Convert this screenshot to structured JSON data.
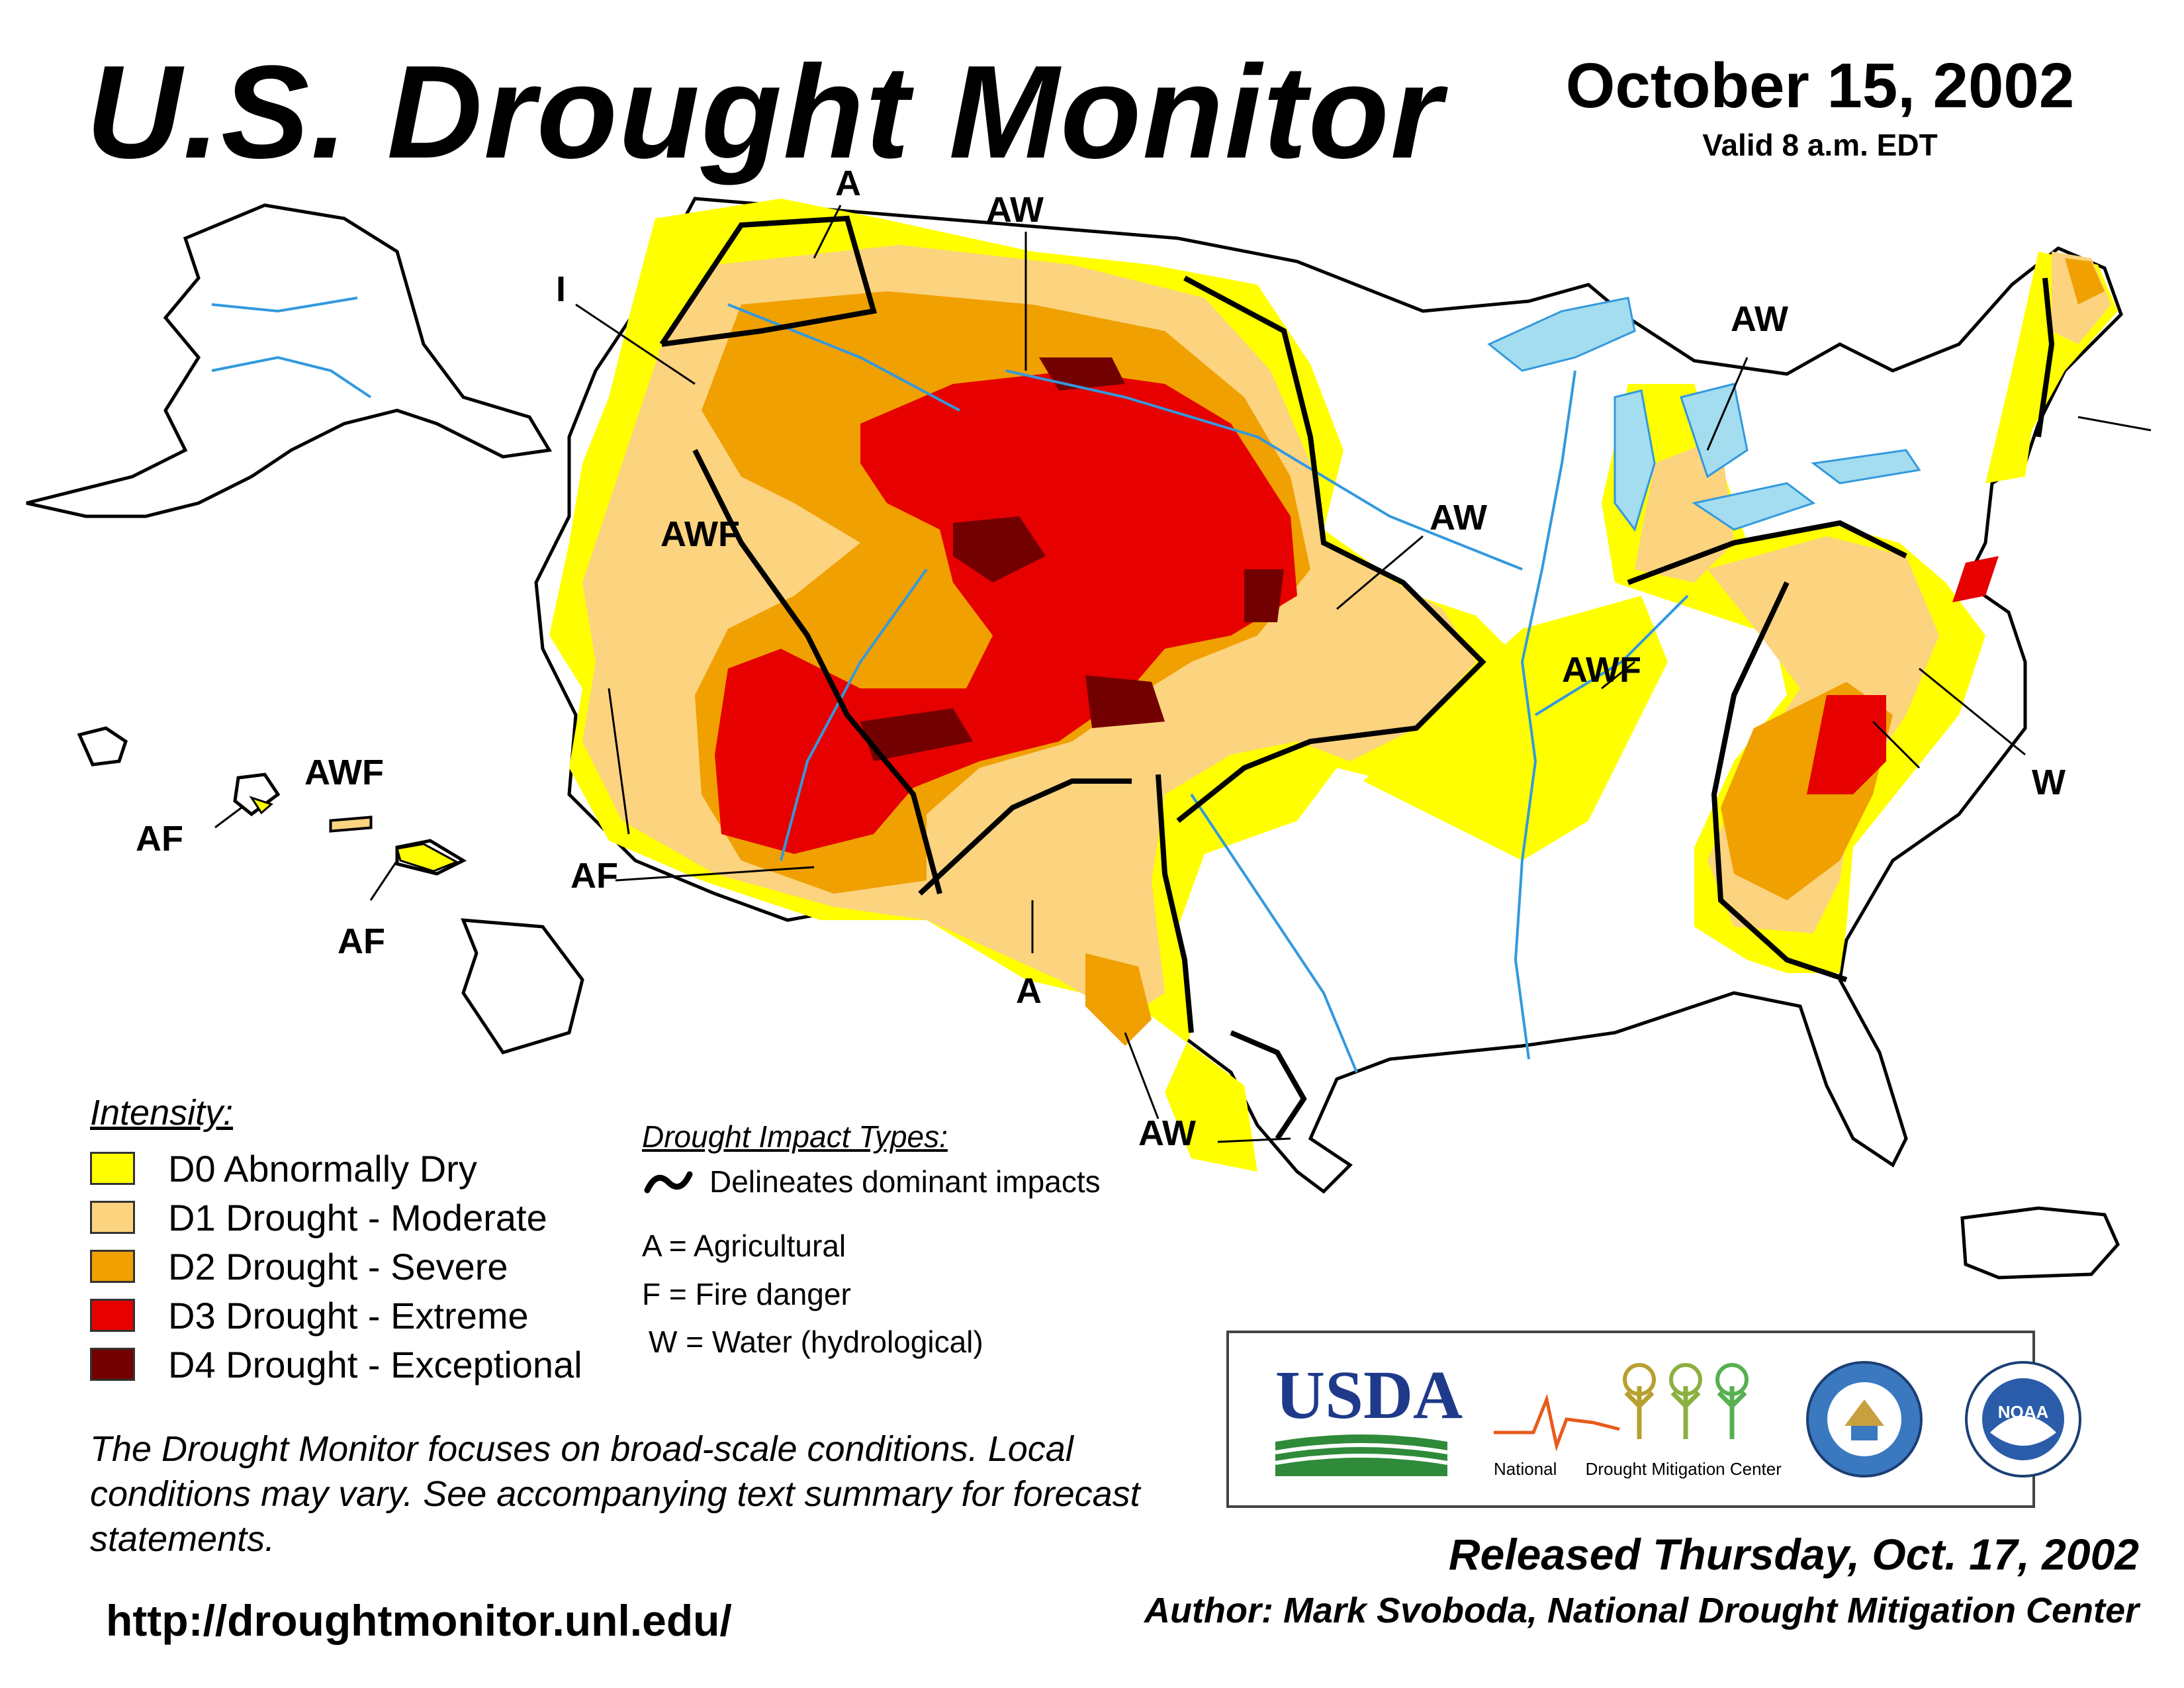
{
  "header": {
    "title": "U.S. Drought Monitor",
    "date": "October 15, 2002",
    "valid": "Valid 8 a.m. EDT"
  },
  "impact_labels": [
    "A",
    "AW",
    "I",
    "AW",
    "AWF",
    "AW",
    "AWF",
    "W",
    "AWF",
    "AF",
    "AF",
    "AF",
    "A",
    "AW"
  ],
  "legend": {
    "title": "Intensity:",
    "items": [
      {
        "label": "D0 Abnormally Dry",
        "color": "#ffff00"
      },
      {
        "label": "D1 Drought - Moderate",
        "color": "#fcd37f"
      },
      {
        "label": "D2 Drought - Severe",
        "color": "#f0a000"
      },
      {
        "label": "D3 Drought - Extreme",
        "color": "#e60000"
      },
      {
        "label": "D4 Drought - Exceptional",
        "color": "#730000"
      }
    ]
  },
  "impact_types": {
    "title": "Drought Impact Types:",
    "delineates": "Delineates dominant impacts",
    "agricultural": "A = Agricultural",
    "fire": "F = Fire danger",
    "water": "W = Water (hydrological)"
  },
  "disclaimer": "The Drought Monitor focuses on broad-scale conditions. Local conditions may vary. See accompanying text summary for forecast statements.",
  "url": "http://droughtmonitor.unl.edu/",
  "logos": {
    "usda": "USDA",
    "ndmc_word1": "National",
    "ndmc_word2": "Drought Mitigation Center",
    "noaa": "NOAA"
  },
  "footer": {
    "released": "Released Thursday, Oct. 17, 2002",
    "author": "Author: Mark Svoboda, National Drought Mitigation Center"
  },
  "colors": {
    "river": "#3399dd",
    "lake": "#a4dcf0",
    "state_border": "#000000",
    "county_border": "#999999"
  }
}
